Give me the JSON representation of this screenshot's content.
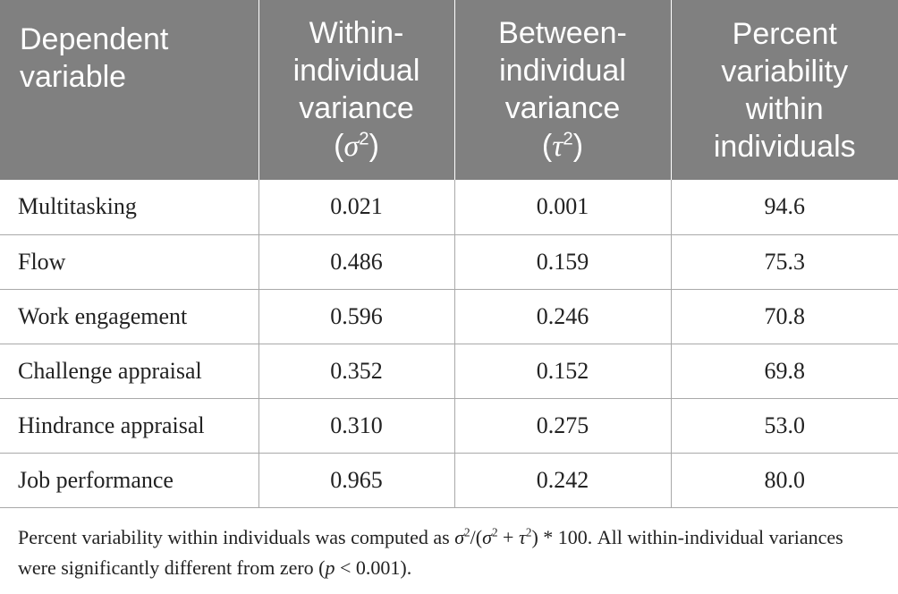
{
  "table": {
    "headers": {
      "col1": "Dependent variable",
      "col2": "Within-individual variance",
      "col2_symbol": "σ",
      "col3": "Between-individual variance",
      "col3_symbol": "τ",
      "col4": "Percent variability within individuals"
    },
    "rows": [
      {
        "variable": "Multitasking",
        "within": "0.021",
        "between": "0.001",
        "percent": "94.6"
      },
      {
        "variable": "Flow",
        "within": "0.486",
        "between": "0.159",
        "percent": "75.3"
      },
      {
        "variable": "Work engagement",
        "within": "0.596",
        "between": "0.246",
        "percent": "70.8"
      },
      {
        "variable": "Challenge appraisal",
        "within": "0.352",
        "between": "0.152",
        "percent": "69.8"
      },
      {
        "variable": "Hindrance appraisal",
        "within": "0.310",
        "between": "0.275",
        "percent": "53.0"
      },
      {
        "variable": "Job performance",
        "within": "0.965",
        "between": "0.242",
        "percent": "80.0"
      }
    ]
  },
  "footnote": {
    "part1": "Percent variability within individuals was computed as ",
    "sigma": "σ",
    "tau": "τ",
    "formula_tail": ") * 100. All within-individual variances were significantly different from zero (",
    "p": "p",
    "p_value": " < 0.001)."
  },
  "colors": {
    "header_bg": "#808080",
    "header_text": "#ffffff",
    "grid": "#a9a9a9"
  }
}
